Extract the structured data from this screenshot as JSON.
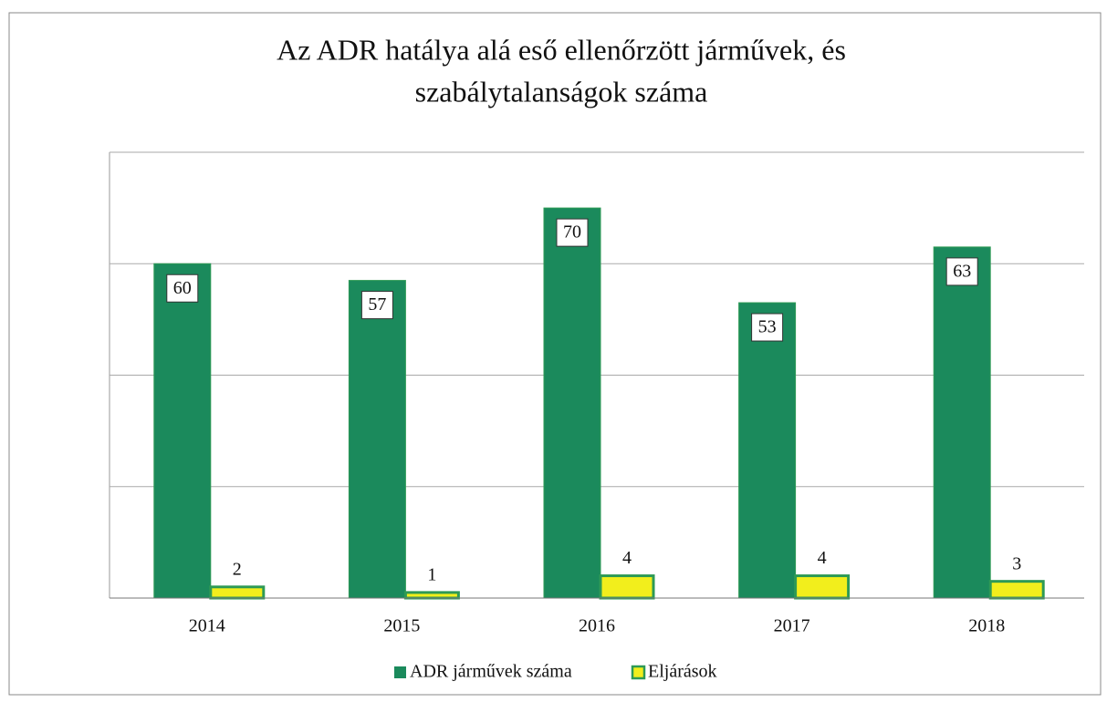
{
  "chart_data": {
    "type": "bar",
    "title": [
      "Az ADR hatálya alá eső ellenőrzött járművek, és",
      "szabálytalanságok száma"
    ],
    "categories": [
      "2014",
      "2015",
      "2016",
      "2017",
      "2018"
    ],
    "series": [
      {
        "name": "ADR járművek száma",
        "color": "#1b8a5c",
        "values": [
          60,
          57,
          70,
          53,
          63
        ]
      },
      {
        "name": "Eljárások",
        "color": "#f2ee1c",
        "values": [
          2,
          1,
          4,
          4,
          3
        ]
      }
    ],
    "ylim": [
      0,
      80
    ],
    "yticks": [
      0,
      20,
      40,
      60,
      80
    ],
    "grid": true,
    "legend": "bottom"
  }
}
